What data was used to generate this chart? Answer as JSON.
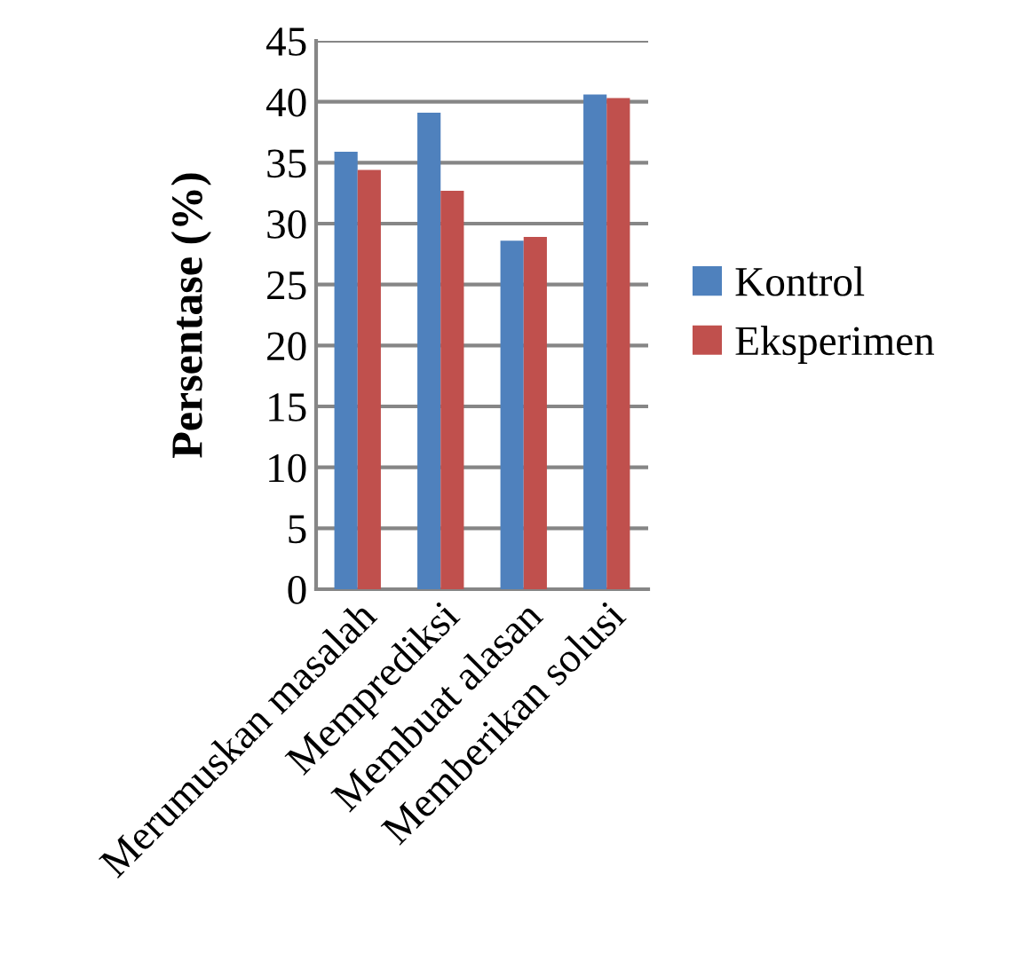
{
  "chart_data": {
    "type": "bar",
    "ylabel": "Persentase (%)",
    "categories": [
      "Merumuskan masalah",
      "Memprediksi",
      "Membuat alasan",
      "Memberikan solusi"
    ],
    "series": [
      {
        "name": "Kontrol",
        "color": "#4f81bd",
        "values": [
          35.9,
          39.1,
          28.6,
          40.6
        ]
      },
      {
        "name": "Eksperimen",
        "color": "#c0504d",
        "values": [
          34.4,
          32.7,
          28.9,
          40.3
        ]
      }
    ],
    "ylim": [
      0,
      45
    ],
    "yticks": [
      0,
      5,
      10,
      15,
      20,
      25,
      30,
      35,
      40,
      45
    ],
    "grid": "y",
    "legend": "right"
  }
}
